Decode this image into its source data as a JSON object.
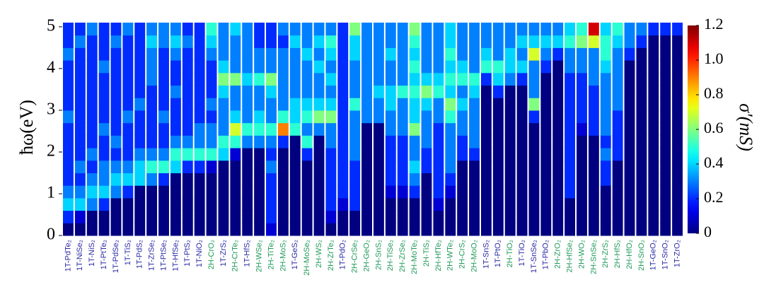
{
  "chart_data": {
    "type": "heatmap",
    "y_label": "ħω(eV)",
    "colorbar_label": "σ′(mS)",
    "colormap": "jet",
    "ylim": [
      0,
      5.1
    ],
    "yticks": [
      0,
      1,
      2,
      3,
      4,
      5
    ],
    "zlim": [
      0,
      1.2
    ],
    "zticks": [
      0,
      0.2,
      0.4,
      0.6,
      0.8,
      {
        "value": 1,
        "label": "1.0"
      },
      1.2
    ],
    "ybins": [
      0,
      0.3,
      0.6,
      0.9,
      1.2,
      1.5,
      1.8,
      2.1,
      2.4,
      2.7,
      3,
      3.3,
      3.6,
      3.9,
      4.2,
      4.5,
      4.8,
      5.1
    ],
    "categories": [
      "1T-PdTe₂",
      "1T-NiSe₂",
      "1T-NiS₂",
      "1T-PtTe₂",
      "1T-PdSe₂",
      "1T-TiS₂",
      "1T-PdS₂",
      "1T-ZrSe₂",
      "1T-PtSe₂",
      "1T-HfSe₂",
      "1T-PtS₂",
      "1T-NiO₂",
      "2H-CrO₂",
      "1T-ZrS₂",
      "2H-CrTe₂",
      "1T-HfS₂",
      "2H-WSe₂",
      "2H-TiTe₂",
      "2H-MoS₂",
      "1T-GeS₂",
      "2H-MoSe₂",
      "2H-WS₂",
      "2H-ZrTe₂",
      "1T-PdO₂",
      "2H-CrSe₂",
      "2H-GeO₂",
      "2H-SnS₂",
      "2H-TiSe₂",
      "2H-ZrSe₂",
      "2H-MoTe₂",
      "2H-TiS₂",
      "2H-HfTe₂",
      "2H-WTe₂",
      "2H-CrS₂",
      "2H-MoO₂",
      "1T-SnS₂",
      "1T-PtO₂",
      "2H-TiO₂",
      "1T-TiO₂",
      "1T-SnSe₂",
      "1T-PbO₂",
      "2H-ZrO₂",
      "2H-HfSe₂",
      "2H-WO₂",
      "2H-SnSe₂",
      "2H-ZrS₂",
      "2H-HfS₂",
      "2H-HfO₂",
      "2H-SnO₂",
      "1T-GeO₂",
      "1T-SnO₂",
      "1T-ZrO₂"
    ],
    "category_colors": [
      "#2a2aa6",
      "#2a2aa6",
      "#2a2aa6",
      "#2a2aa6",
      "#2a2aa6",
      "#2a2aa6",
      "#2a2aa6",
      "#2a2aa6",
      "#2a2aa6",
      "#2a2aa6",
      "#2a2aa6",
      "#2a2aa6",
      "#1f9a5a",
      "#2a2aa6",
      "#1f9a5a",
      "#2a2aa6",
      "#1f9a5a",
      "#1f9a5a",
      "#1f9a5a",
      "#2a2aa6",
      "#1f9a5a",
      "#1f9a5a",
      "#1f9a5a",
      "#2a2aa6",
      "#1f9a5a",
      "#1f9a5a",
      "#1f9a5a",
      "#1f9a5a",
      "#1f9a5a",
      "#1f9a5a",
      "#1f9a5a",
      "#1f9a5a",
      "#1f9a5a",
      "#1f9a5a",
      "#1f9a5a",
      "#2a2aa6",
      "#2a2aa6",
      "#1f9a5a",
      "#2a2aa6",
      "#2a2aa6",
      "#2a2aa6",
      "#1f9a5a",
      "#1f9a5a",
      "#1f9a5a",
      "#1f9a5a",
      "#1f9a5a",
      "#1f9a5a",
      "#1f9a5a",
      "#1f9a5a",
      "#2a2aa6",
      "#2a2aa6",
      "#2a2aa6"
    ],
    "z": [
      [
        0,
        0.2,
        0.4,
        0.3,
        0.2,
        0.2,
        0.2,
        0.2,
        0.2,
        0.3,
        0.2,
        0.2,
        0.2,
        0.2,
        0.3,
        0.2,
        0.2
      ],
      [
        0,
        0.1,
        0.4,
        0.3,
        0.2,
        0.3,
        0.2,
        0.2,
        0.2,
        0.2,
        0.2,
        0.2,
        0.2,
        0.2,
        0.2,
        0.3,
        0.2
      ],
      [
        0,
        0,
        0.3,
        0.4,
        0.3,
        0.2,
        0.3,
        0.2,
        0.2,
        0.2,
        0.2,
        0.2,
        0.2,
        0.2,
        0.2,
        0.2,
        0.3
      ],
      [
        0,
        0,
        0.2,
        0.4,
        0.3,
        0.3,
        0.2,
        0.2,
        0.3,
        0.2,
        0.2,
        0.2,
        0.2,
        0.3,
        0.2,
        0.2,
        0.2
      ],
      [
        0,
        0,
        0,
        0.3,
        0.4,
        0.3,
        0.2,
        0.3,
        0.2,
        0.2,
        0.2,
        0.2,
        0.2,
        0.2,
        0.2,
        0.3,
        0.2
      ],
      [
        0,
        0,
        0,
        0.2,
        0.4,
        0.3,
        0.2,
        0.2,
        0.2,
        0.3,
        0.2,
        0.2,
        0.2,
        0.2,
        0.2,
        0.2,
        0.3
      ],
      [
        0,
        0,
        0,
        0,
        0.4,
        0.4,
        0.3,
        0.2,
        0.2,
        0.2,
        0.3,
        0.2,
        0.2,
        0.2,
        0.2,
        0.2,
        0.2
      ],
      [
        0,
        0,
        0,
        0,
        0.3,
        0.5,
        0.3,
        0.2,
        0.2,
        0.2,
        0.2,
        0.2,
        0.3,
        0.3,
        0.3,
        0.4,
        0.3
      ],
      [
        0,
        0,
        0,
        0,
        0.2,
        0.5,
        0.3,
        0.2,
        0.2,
        0.3,
        0.2,
        0.2,
        0.2,
        0.2,
        0.2,
        0.3,
        0.3
      ],
      [
        0,
        0,
        0,
        0,
        0,
        0.4,
        0.5,
        0.3,
        0.2,
        0.2,
        0.2,
        0.3,
        0.2,
        0.2,
        0.3,
        0.4,
        0.3
      ],
      [
        0,
        0,
        0,
        0,
        0,
        0.2,
        0.5,
        0.3,
        0.2,
        0.2,
        0.2,
        0.2,
        0.2,
        0.2,
        0.2,
        0.3,
        0.2
      ],
      [
        0,
        0,
        0,
        0,
        0,
        0.2,
        0.5,
        0.3,
        0.3,
        0.2,
        0.2,
        0.2,
        0.2,
        0.2,
        0.2,
        0.2,
        0.2
      ],
      [
        0,
        0,
        0,
        0,
        0,
        0.1,
        0.5,
        0.3,
        0.3,
        0.2,
        0.3,
        0.2,
        0.2,
        0.2,
        0.3,
        0.4,
        0.5
      ],
      [
        0,
        0,
        0,
        0,
        0,
        0,
        0.4,
        0.5,
        0.3,
        0.3,
        0.3,
        0.4,
        0.6,
        0.4,
        0.3,
        0.3,
        0.3
      ],
      [
        0,
        0,
        0,
        0,
        0,
        0,
        0.1,
        0.5,
        0.7,
        0.4,
        0.3,
        0.3,
        0.6,
        0.3,
        0.3,
        0.3,
        0.4
      ],
      [
        0,
        0,
        0,
        0,
        0,
        0,
        0,
        0.3,
        0.5,
        0.3,
        0.3,
        0.3,
        0.4,
        0.3,
        0.3,
        0.3,
        0.3
      ],
      [
        0,
        0,
        0,
        0,
        0,
        0,
        0,
        0.3,
        0.5,
        0.4,
        0.3,
        0.3,
        0.5,
        0.3,
        0.3,
        0.2,
        0.2
      ],
      [
        0.1,
        0.2,
        0.2,
        0.2,
        0.2,
        0.3,
        0.2,
        0.3,
        0.5,
        0.3,
        0.3,
        0.4,
        0.6,
        0.3,
        0.3,
        0.2,
        0.2
      ],
      [
        0,
        0,
        0,
        0,
        0,
        0,
        0,
        0.2,
        0.9,
        0.5,
        0.3,
        0.3,
        0.3,
        0.3,
        0.3,
        0.2,
        0.3
      ],
      [
        0,
        0,
        0,
        0,
        0,
        0,
        0,
        0,
        0.5,
        0.4,
        0.4,
        0.3,
        0.3,
        0.3,
        0.3,
        0.4,
        0.3
      ],
      [
        0,
        0,
        0,
        0,
        0,
        0,
        0.2,
        0.5,
        0.3,
        0.5,
        0.4,
        0.3,
        0.3,
        0.3,
        0.4,
        0.3,
        0.3
      ],
      [
        0,
        0,
        0,
        0,
        0,
        0,
        0,
        0,
        0.3,
        0.6,
        0.4,
        0.3,
        0.3,
        0.4,
        0.3,
        0.4,
        0.3
      ],
      [
        0,
        0.1,
        0.2,
        0.2,
        0.2,
        0.2,
        0.2,
        0.3,
        0.3,
        0.6,
        0.4,
        0.3,
        0.4,
        0.3,
        0.4,
        0.5,
        0.3
      ],
      [
        0,
        0,
        0.1,
        0.2,
        0.2,
        0.2,
        0.2,
        0.2,
        0.2,
        0.2,
        0.2,
        0.2,
        0.2,
        0.2,
        0.2,
        0.2,
        0.2
      ],
      [
        0,
        0,
        0.2,
        0.2,
        0.2,
        0.2,
        0.3,
        0.3,
        0.3,
        0.3,
        0.5,
        0.3,
        0.3,
        0.3,
        0.4,
        0.4,
        0.6
      ],
      [
        0,
        0,
        0,
        0,
        0,
        0,
        0,
        0,
        0,
        0.3,
        0.3,
        0.3,
        0.3,
        0.3,
        0.3,
        0.3,
        0.3
      ],
      [
        0,
        0,
        0,
        0,
        0,
        0,
        0,
        0,
        0,
        0.3,
        0.3,
        0.4,
        0.3,
        0.3,
        0.3,
        0.3,
        0.3
      ],
      [
        0,
        0,
        0,
        0.1,
        0.2,
        0.2,
        0.2,
        0.2,
        0.3,
        0.3,
        0.4,
        0.4,
        0.3,
        0.3,
        0.4,
        0.3,
        0.3
      ],
      [
        0,
        0,
        0,
        0.1,
        0.2,
        0.2,
        0.2,
        0.2,
        0.3,
        0.3,
        0.3,
        0.5,
        0.3,
        0.3,
        0.3,
        0.3,
        0.3
      ],
      [
        0,
        0,
        0,
        0.2,
        0.3,
        0.4,
        0.3,
        0.3,
        0.6,
        0.4,
        0.4,
        0.5,
        0.4,
        0.5,
        0.4,
        0.5,
        0.6
      ],
      [
        0,
        0,
        0,
        0,
        0,
        0.2,
        0.2,
        0.3,
        0.3,
        0.3,
        0.4,
        0.6,
        0.4,
        0.3,
        0.3,
        0.3,
        0.3
      ],
      [
        0,
        0,
        0.1,
        0.2,
        0.2,
        0.2,
        0.2,
        0.2,
        0.2,
        0.3,
        0.3,
        0.5,
        0.4,
        0.3,
        0.3,
        0.3,
        0.3
      ],
      [
        0,
        0,
        0,
        0.1,
        0.2,
        0.3,
        0.3,
        0.3,
        0.3,
        0.5,
        0.6,
        0.4,
        0.5,
        0.4,
        0.5,
        0.4,
        0.4
      ],
      [
        0,
        0,
        0,
        0,
        0,
        0,
        0.2,
        0.2,
        0.3,
        0.3,
        0.4,
        0.3,
        0.5,
        0.4,
        0.3,
        0.3,
        0.3
      ],
      [
        0,
        0,
        0,
        0,
        0,
        0,
        0.2,
        0.3,
        0.3,
        0.3,
        0.3,
        0.4,
        0.5,
        0.3,
        0.3,
        0.3,
        0.3
      ],
      [
        0,
        0,
        0,
        0,
        0,
        0,
        0,
        0,
        0,
        0,
        0,
        0,
        0.2,
        0.5,
        0.4,
        0.3,
        0.3
      ],
      [
        0,
        0,
        0,
        0,
        0,
        0,
        0,
        0,
        0,
        0,
        0,
        0.2,
        0.4,
        0.5,
        0.3,
        0.3,
        0.3
      ],
      [
        0,
        0,
        0,
        0,
        0,
        0,
        0,
        0,
        0,
        0,
        0,
        0,
        0.3,
        0.4,
        0.4,
        0.3,
        0.3
      ],
      [
        0,
        0,
        0,
        0,
        0,
        0,
        0,
        0,
        0,
        0,
        0,
        0,
        0.2,
        0.4,
        0.3,
        0.4,
        0.3
      ],
      [
        0,
        0,
        0,
        0,
        0,
        0,
        0,
        0,
        0,
        0.2,
        0.6,
        0.3,
        0.3,
        0.3,
        0.7,
        0.4,
        0.3
      ],
      [
        0,
        0,
        0,
        0,
        0,
        0,
        0,
        0,
        0,
        0,
        0,
        0,
        0,
        0.2,
        0.3,
        0.4,
        0.3
      ],
      [
        0,
        0,
        0,
        0,
        0,
        0,
        0,
        0,
        0,
        0,
        0,
        0,
        0,
        0,
        0.2,
        0.4,
        0.3
      ],
      [
        0,
        0,
        0,
        0.2,
        0.2,
        0.2,
        0.2,
        0.2,
        0.2,
        0.2,
        0.2,
        0.2,
        0.2,
        0.3,
        0.3,
        0.5,
        0.4
      ],
      [
        0,
        0,
        0,
        0,
        0,
        0,
        0,
        0,
        0.1,
        0.2,
        0.2,
        0.2,
        0.2,
        0.3,
        0.3,
        0.6,
        0.5
      ],
      [
        0,
        0,
        0,
        0,
        0,
        0,
        0,
        0,
        0.2,
        0.2,
        0.2,
        0.2,
        0.3,
        0.3,
        0.3,
        0.7,
        1.1
      ],
      [
        0,
        0,
        0,
        0,
        0.2,
        0.2,
        0.3,
        0.2,
        0.3,
        0.3,
        0.3,
        0.3,
        0.3,
        0.4,
        0.5,
        0.5,
        0.4
      ],
      [
        0,
        0,
        0,
        0,
        0,
        0,
        0.2,
        0.2,
        0.2,
        0.2,
        0.3,
        0.3,
        0.3,
        0.3,
        0.3,
        0.4,
        0.5
      ],
      [
        0,
        0,
        0,
        0,
        0,
        0,
        0,
        0,
        0,
        0,
        0,
        0,
        0,
        0,
        0.2,
        0.3,
        0.3
      ],
      [
        0,
        0,
        0,
        0,
        0,
        0,
        0,
        0,
        0,
        0,
        0,
        0,
        0,
        0,
        0,
        0.2,
        0.3
      ],
      [
        0,
        0,
        0,
        0,
        0,
        0,
        0,
        0,
        0,
        0,
        0,
        0,
        0,
        0,
        0,
        0,
        0.2
      ],
      [
        0,
        0,
        0,
        0,
        0,
        0,
        0,
        0,
        0,
        0,
        0,
        0,
        0,
        0,
        0,
        0,
        0.2
      ],
      [
        0,
        0,
        0,
        0,
        0,
        0,
        0,
        0,
        0,
        0,
        0,
        0,
        0,
        0,
        0,
        0,
        0.2
      ]
    ]
  }
}
